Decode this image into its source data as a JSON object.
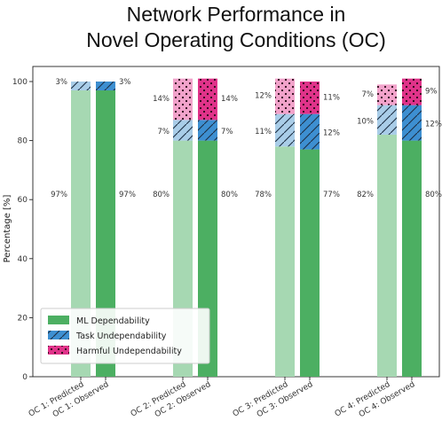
{
  "chart_data": {
    "type": "bar",
    "stacked": true,
    "title_lines": [
      "Network Performance in",
      "Novel Operating Conditions (OC)"
    ],
    "xlabel": "",
    "ylabel": "Percentage [%]",
    "ylim": [
      0,
      100
    ],
    "yticks": [
      "0",
      "20",
      "40",
      "60",
      "80",
      "100"
    ],
    "grid": false,
    "legend_position": "lower-left",
    "categories": [
      "OC 1: Predicted",
      "OC 1: Observed",
      "OC 2: Predicted",
      "OC 2: Observed",
      "OC 3: Predicted",
      "OC 3: Observed",
      "OC 4: Predicted",
      "OC 4: Observed"
    ],
    "series": [
      {
        "name": "ML Dependability",
        "values": [
          97,
          97,
          80,
          80,
          78,
          77,
          82,
          80
        ],
        "labels": [
          "97%",
          "97%",
          "80%",
          "80%",
          "78%",
          "77%",
          "82%",
          "80%"
        ],
        "color": "#4caf62",
        "color_predicted": "#a6d8b2",
        "pattern": "none"
      },
      {
        "name": "Task Undependability",
        "values": [
          3,
          3,
          7,
          7,
          11,
          12,
          10,
          12
        ],
        "labels": [
          "3%",
          "3%",
          "7%",
          "7%",
          "11%",
          "12%",
          "10%",
          "12%"
        ],
        "color": "#3d8fd1",
        "color_predicted": "#a9cde8",
        "pattern": "slash"
      },
      {
        "name": "Harmful Undependability",
        "values": [
          0,
          0,
          14,
          14,
          12,
          11,
          7,
          9
        ],
        "labels": [
          "",
          "",
          "14%",
          "14%",
          "12%",
          "11%",
          "7%",
          "9%"
        ],
        "color": "#e0338a",
        "color_predicted": "#f2a3cb",
        "pattern": "dots"
      }
    ]
  }
}
